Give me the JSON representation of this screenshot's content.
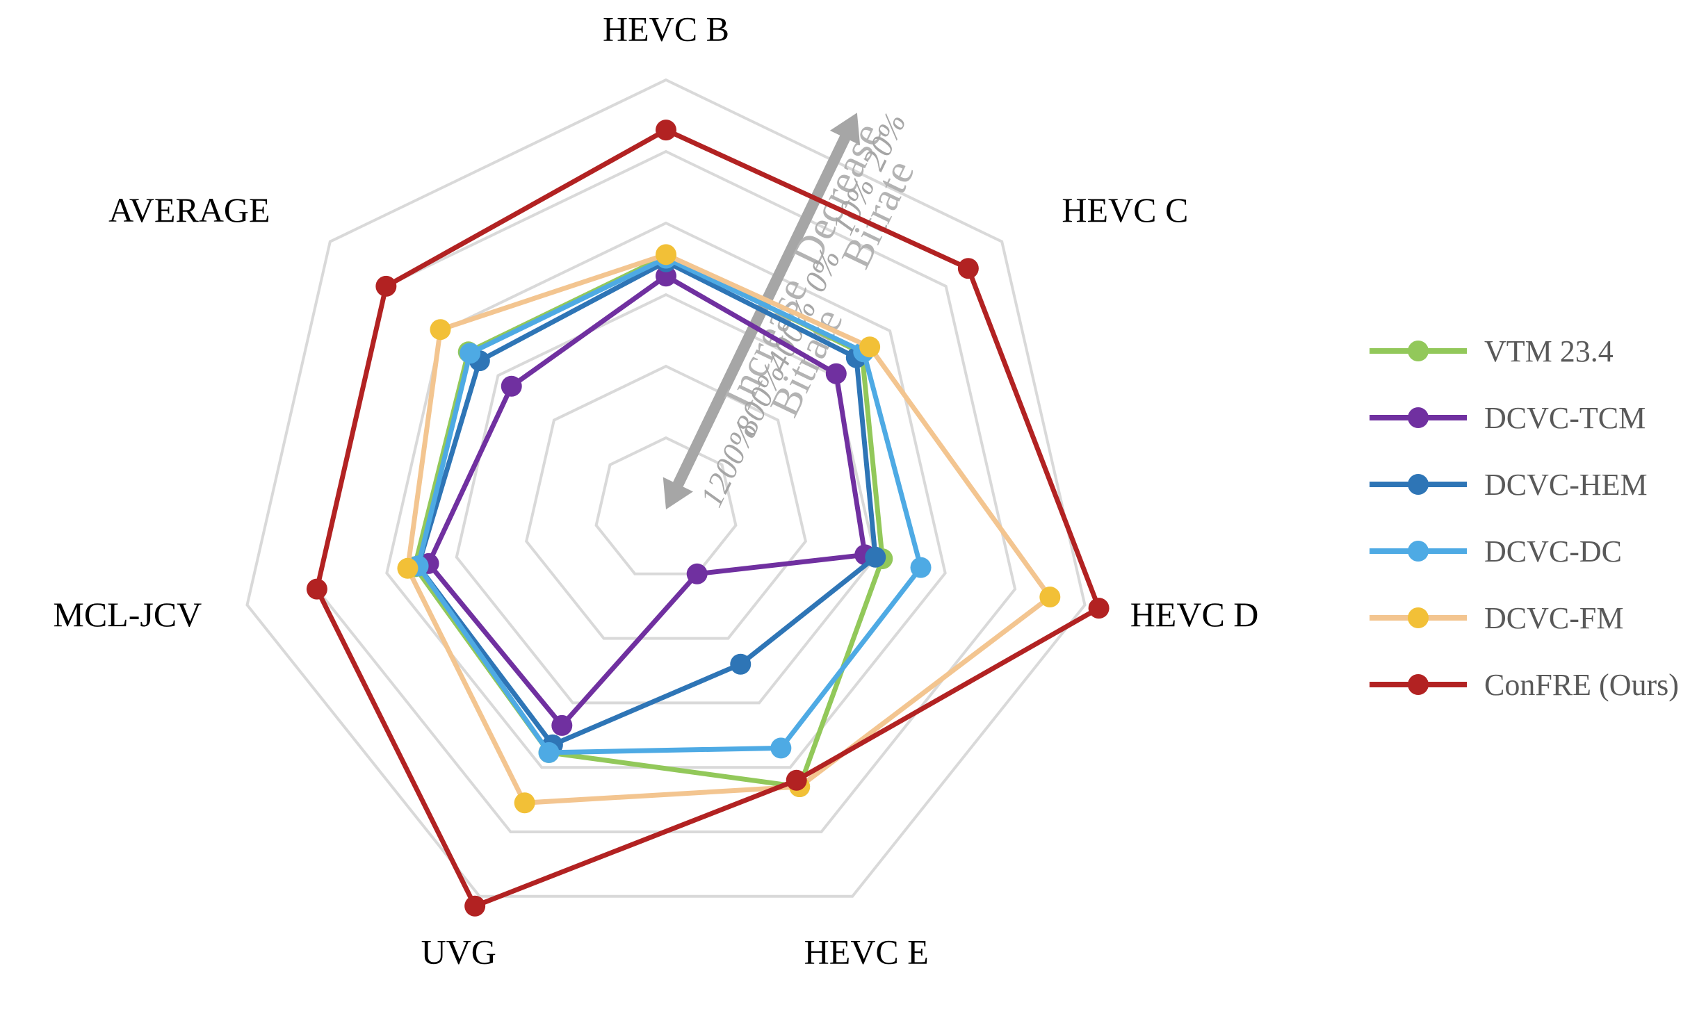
{
  "chart_data": {
    "type": "radar",
    "title": "",
    "axes": [
      "HEVC B",
      "HEVC C",
      "HEVC D",
      "HEVC E",
      "UVG",
      "MCL-JCV",
      "AVERAGE"
    ],
    "rings": 6,
    "tick_labels": [
      "1200%",
      "800%",
      "400%",
      "0%",
      "10%",
      "20%"
    ],
    "arrow_annotations": {
      "increase_line1": "Bitrate",
      "increase_line2": "Increase",
      "decrease_line1": "Bitrate",
      "decrease_line2": "Decrease"
    },
    "series": [
      {
        "name": "VTM 23.4",
        "color": "#92c85a",
        "values": [
          3.54,
          3.5,
          3.1,
          4.3,
          3.77,
          3.6,
          3.53
        ]
      },
      {
        "name": "DCVC-TCM",
        "color": "#7030a0",
        "values": [
          3.26,
          3.04,
          2.85,
          1.0,
          3.35,
          3.4,
          2.76
        ]
      },
      {
        "name": "DCVC-HEM",
        "color": "#2e75b6",
        "values": [
          3.46,
          3.4,
          3.0,
          2.4,
          3.65,
          3.55,
          3.33
        ]
      },
      {
        "name": "DCVC-DC",
        "color": "#4eaae4",
        "values": [
          3.51,
          3.53,
          3.65,
          3.7,
          3.77,
          3.55,
          3.5
        ]
      },
      {
        "name": "DCVC-FM",
        "color": "#f2c037",
        "values": [
          3.56,
          3.64,
          5.5,
          4.3,
          4.55,
          3.7,
          4.03
        ]
      },
      {
        "name": "ConFRE (Ours)",
        "color": "#b22222",
        "values": [
          5.3,
          5.4,
          6.2,
          4.2,
          6.15,
          5.0,
          5.0
        ]
      }
    ],
    "legend_position": "right"
  }
}
